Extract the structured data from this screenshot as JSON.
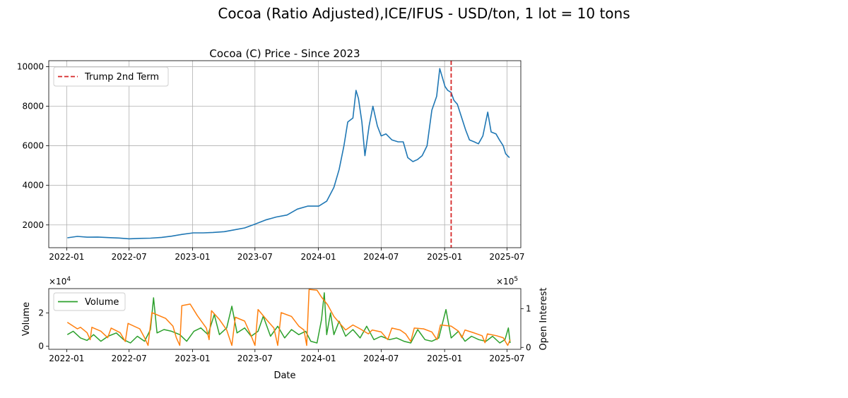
{
  "suptitle": "Cocoa (Ratio Adjusted),ICE/IFUS - USD/ton, 1 lot = 10 tons",
  "chart_data": [
    {
      "type": "line",
      "title": "Cocoa (C) Price - Since 2023",
      "xlabel": "",
      "ylabel": "",
      "x_ticks": [
        "2022-01",
        "2022-07",
        "2023-01",
        "2023-07",
        "2024-01",
        "2024-07",
        "2025-01",
        "2025-07"
      ],
      "y_ticks": [
        2000,
        4000,
        6000,
        8000,
        10000
      ],
      "xlim": [
        "2021-11-10",
        "2025-08-10"
      ],
      "ylim": [
        850,
        10300
      ],
      "grid": true,
      "legend_position": "upper-left",
      "color": "#1f77b4",
      "annotations": [
        {
          "type": "vline",
          "x": "2025-01-20",
          "label": "Trump 2nd Term",
          "color": "#d62728",
          "style": "dashed"
        }
      ],
      "series": [
        {
          "color": "#1f77b4",
          "points": [
            [
              "2022-01-03",
              1350
            ],
            [
              "2022-02-01",
              1420
            ],
            [
              "2022-03-01",
              1380
            ],
            [
              "2022-04-01",
              1390
            ],
            [
              "2022-05-02",
              1360
            ],
            [
              "2022-06-01",
              1340
            ],
            [
              "2022-07-01",
              1300
            ],
            [
              "2022-08-01",
              1320
            ],
            [
              "2022-09-01",
              1330
            ],
            [
              "2022-10-03",
              1370
            ],
            [
              "2022-11-01",
              1430
            ],
            [
              "2022-12-01",
              1520
            ],
            [
              "2023-01-03",
              1600
            ],
            [
              "2023-02-01",
              1600
            ],
            [
              "2023-03-01",
              1620
            ],
            [
              "2023-04-03",
              1660
            ],
            [
              "2023-05-01",
              1750
            ],
            [
              "2023-06-01",
              1850
            ],
            [
              "2023-07-03",
              2050
            ],
            [
              "2023-08-01",
              2250
            ],
            [
              "2023-09-01",
              2400
            ],
            [
              "2023-10-02",
              2500
            ],
            [
              "2023-11-01",
              2800
            ],
            [
              "2023-12-01",
              2950
            ],
            [
              "2024-01-02",
              2950
            ],
            [
              "2024-01-25",
              3200
            ],
            [
              "2024-02-15",
              3900
            ],
            [
              "2024-03-01",
              4800
            ],
            [
              "2024-03-15",
              6000
            ],
            [
              "2024-03-26",
              7200
            ],
            [
              "2024-04-10",
              7400
            ],
            [
              "2024-04-19",
              8800
            ],
            [
              "2024-04-26",
              8400
            ],
            [
              "2024-05-06",
              7200
            ],
            [
              "2024-05-15",
              5500
            ],
            [
              "2024-05-27",
              7000
            ],
            [
              "2024-06-07",
              8000
            ],
            [
              "2024-06-20",
              7000
            ],
            [
              "2024-07-01",
              6500
            ],
            [
              "2024-07-15",
              6600
            ],
            [
              "2024-08-01",
              6300
            ],
            [
              "2024-08-19",
              6200
            ],
            [
              "2024-09-03",
              6200
            ],
            [
              "2024-09-16",
              5400
            ],
            [
              "2024-10-01",
              5200
            ],
            [
              "2024-10-14",
              5300
            ],
            [
              "2024-10-28",
              5500
            ],
            [
              "2024-11-11",
              6000
            ],
            [
              "2024-11-25",
              7800
            ],
            [
              "2024-12-09",
              8500
            ],
            [
              "2024-12-18",
              9900
            ],
            [
              "2025-01-02",
              9000
            ],
            [
              "2025-01-10",
              8800
            ],
            [
              "2025-01-20",
              8700
            ],
            [
              "2025-01-28",
              8300
            ],
            [
              "2025-02-07",
              8100
            ],
            [
              "2025-02-18",
              7500
            ],
            [
              "2025-03-03",
              6800
            ],
            [
              "2025-03-14",
              6300
            ],
            [
              "2025-03-28",
              6200
            ],
            [
              "2025-04-09",
              6100
            ],
            [
              "2025-04-22",
              6500
            ],
            [
              "2025-05-06",
              7700
            ],
            [
              "2025-05-16",
              6700
            ],
            [
              "2025-05-30",
              6600
            ],
            [
              "2025-06-09",
              6300
            ],
            [
              "2025-06-20",
              6000
            ],
            [
              "2025-06-27",
              5600
            ],
            [
              "2025-07-08",
              5400
            ]
          ]
        }
      ]
    },
    {
      "type": "line",
      "title": "",
      "xlabel": "Date",
      "ylabel": "Volume",
      "y2label": "Open Interest",
      "y_ticks": [
        0,
        2
      ],
      "y_multiplier": "×10",
      "y_exponent": "4",
      "y2_ticks": [
        0,
        1
      ],
      "y2_multiplier": "×10",
      "y2_exponent": "5",
      "x_ticks": [
        "2022-01",
        "2022-07",
        "2023-01",
        "2023-07",
        "2024-01",
        "2024-07",
        "2025-01",
        "2025-07"
      ],
      "xlim": [
        "2021-11-10",
        "2025-08-10"
      ],
      "ylim": [
        -1800,
        34500
      ],
      "y2lim": [
        -5000,
        152000
      ],
      "grid": false,
      "legend_position": "upper-left",
      "series": [
        {
          "name": "Volume",
          "axis": "left",
          "color": "#2ca02c",
          "points": [
            [
              "2022-01-03",
              7000
            ],
            [
              "2022-01-20",
              9000
            ],
            [
              "2022-02-10",
              5000
            ],
            [
              "2022-03-01",
              3500
            ],
            [
              "2022-03-20",
              7000
            ],
            [
              "2022-04-10",
              3000
            ],
            [
              "2022-05-01",
              6000
            ],
            [
              "2022-05-25",
              8000
            ],
            [
              "2022-06-15",
              4000
            ],
            [
              "2022-07-05",
              2000
            ],
            [
              "2022-07-25",
              6000
            ],
            [
              "2022-08-15",
              3000
            ],
            [
              "2022-09-01",
              10000
            ],
            [
              "2022-09-10",
              29000
            ],
            [
              "2022-09-20",
              8000
            ],
            [
              "2022-10-10",
              10000
            ],
            [
              "2022-11-01",
              9000
            ],
            [
              "2022-11-25",
              7000
            ],
            [
              "2022-12-15",
              3000
            ],
            [
              "2023-01-05",
              9000
            ],
            [
              "2023-01-25",
              11000
            ],
            [
              "2023-02-15",
              7000
            ],
            [
              "2023-03-05",
              19000
            ],
            [
              "2023-03-20",
              7000
            ],
            [
              "2023-04-10",
              11000
            ],
            [
              "2023-04-25",
              24000
            ],
            [
              "2023-05-10",
              8000
            ],
            [
              "2023-06-01",
              11000
            ],
            [
              "2023-06-20",
              6000
            ],
            [
              "2023-07-10",
              9000
            ],
            [
              "2023-07-25",
              18000
            ],
            [
              "2023-08-15",
              6000
            ],
            [
              "2023-09-05",
              12000
            ],
            [
              "2023-09-25",
              5000
            ],
            [
              "2023-10-15",
              10000
            ],
            [
              "2023-11-05",
              7000
            ],
            [
              "2023-11-25",
              9000
            ],
            [
              "2023-12-10",
              3000
            ],
            [
              "2023-12-28",
              2000
            ],
            [
              "2024-01-10",
              16000
            ],
            [
              "2024-01-18",
              32000
            ],
            [
              "2024-01-25",
              7000
            ],
            [
              "2024-02-05",
              20000
            ],
            [
              "2024-02-15",
              7000
            ],
            [
              "2024-03-01",
              15000
            ],
            [
              "2024-03-20",
              6000
            ],
            [
              "2024-04-10",
              10000
            ],
            [
              "2024-05-01",
              5000
            ],
            [
              "2024-05-20",
              12000
            ],
            [
              "2024-06-10",
              4000
            ],
            [
              "2024-07-01",
              6000
            ],
            [
              "2024-07-25",
              4000
            ],
            [
              "2024-08-15",
              5000
            ],
            [
              "2024-09-05",
              3000
            ],
            [
              "2024-09-25",
              2000
            ],
            [
              "2024-10-15",
              10000
            ],
            [
              "2024-11-05",
              4000
            ],
            [
              "2024-11-25",
              3000
            ],
            [
              "2024-12-15",
              5000
            ],
            [
              "2025-01-05",
              22000
            ],
            [
              "2025-01-20",
              5000
            ],
            [
              "2025-02-10",
              9000
            ],
            [
              "2025-03-01",
              3000
            ],
            [
              "2025-03-20",
              6000
            ],
            [
              "2025-04-10",
              4000
            ],
            [
              "2025-05-01",
              3000
            ],
            [
              "2025-05-20",
              6000
            ],
            [
              "2025-06-10",
              2000
            ],
            [
              "2025-06-25",
              4000
            ],
            [
              "2025-07-05",
              11000
            ],
            [
              "2025-07-10",
              2000
            ]
          ]
        },
        {
          "name": "",
          "axis": "right",
          "color": "#ff7f0e",
          "points": [
            [
              "2022-01-03",
              65000
            ],
            [
              "2022-02-01",
              48000
            ],
            [
              "2022-02-10",
              52000
            ],
            [
              "2022-03-01",
              38000
            ],
            [
              "2022-03-10",
              20000
            ],
            [
              "2022-03-15",
              52000
            ],
            [
              "2022-04-10",
              42000
            ],
            [
              "2022-04-30",
              25000
            ],
            [
              "2022-05-10",
              50000
            ],
            [
              "2022-06-05",
              38000
            ],
            [
              "2022-06-20",
              15000
            ],
            [
              "2022-06-28",
              62000
            ],
            [
              "2022-08-01",
              48000
            ],
            [
              "2022-08-15",
              25000
            ],
            [
              "2022-08-25",
              5000
            ],
            [
              "2022-09-05",
              90000
            ],
            [
              "2022-10-15",
              75000
            ],
            [
              "2022-11-05",
              55000
            ],
            [
              "2022-11-15",
              25000
            ],
            [
              "2022-11-25",
              5000
            ],
            [
              "2022-12-01",
              108000
            ],
            [
              "2022-12-25",
              112000
            ],
            [
              "2023-01-15",
              82000
            ],
            [
              "2023-02-10",
              50000
            ],
            [
              "2023-02-18",
              20000
            ],
            [
              "2023-02-25",
              95000
            ],
            [
              "2023-03-20",
              72000
            ],
            [
              "2023-04-10",
              45000
            ],
            [
              "2023-04-25",
              5000
            ],
            [
              "2023-05-05",
              78000
            ],
            [
              "2023-06-01",
              68000
            ],
            [
              "2023-06-20",
              30000
            ],
            [
              "2023-07-01",
              5000
            ],
            [
              "2023-07-10",
              98000
            ],
            [
              "2023-08-05",
              70000
            ],
            [
              "2023-08-25",
              50000
            ],
            [
              "2023-09-05",
              5000
            ],
            [
              "2023-09-15",
              90000
            ],
            [
              "2023-10-15",
              80000
            ],
            [
              "2023-11-05",
              55000
            ],
            [
              "2023-11-20",
              45000
            ],
            [
              "2023-11-28",
              5000
            ],
            [
              "2023-12-05",
              150000
            ],
            [
              "2023-12-28",
              148000
            ],
            [
              "2024-01-10",
              130000
            ],
            [
              "2024-01-28",
              110000
            ],
            [
              "2024-02-15",
              80000
            ],
            [
              "2024-03-05",
              60000
            ],
            [
              "2024-03-20",
              45000
            ],
            [
              "2024-04-10",
              58000
            ],
            [
              "2024-05-01",
              48000
            ],
            [
              "2024-05-25",
              35000
            ],
            [
              "2024-06-05",
              45000
            ],
            [
              "2024-07-01",
              40000
            ],
            [
              "2024-07-20",
              20000
            ],
            [
              "2024-08-01",
              50000
            ],
            [
              "2024-08-25",
              45000
            ],
            [
              "2024-09-10",
              35000
            ],
            [
              "2024-09-25",
              15000
            ],
            [
              "2024-10-05",
              50000
            ],
            [
              "2024-11-01",
              48000
            ],
            [
              "2024-11-25",
              40000
            ],
            [
              "2024-12-10",
              20000
            ],
            [
              "2024-12-20",
              58000
            ],
            [
              "2025-01-20",
              55000
            ],
            [
              "2025-02-10",
              42000
            ],
            [
              "2025-02-20",
              25000
            ],
            [
              "2025-03-01",
              45000
            ],
            [
              "2025-03-25",
              38000
            ],
            [
              "2025-04-20",
              30000
            ],
            [
              "2025-04-28",
              12000
            ],
            [
              "2025-05-05",
              35000
            ],
            [
              "2025-06-01",
              30000
            ],
            [
              "2025-06-20",
              25000
            ],
            [
              "2025-07-03",
              5000
            ],
            [
              "2025-07-10",
              20000
            ]
          ]
        }
      ]
    }
  ]
}
